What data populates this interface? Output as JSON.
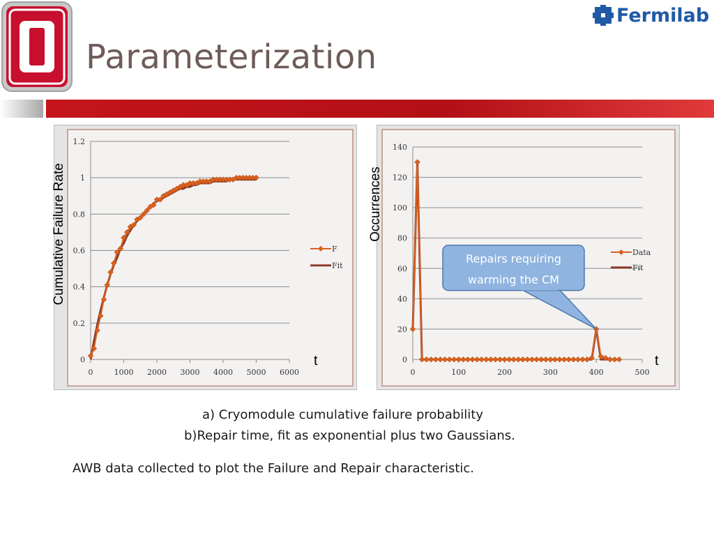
{
  "header": {
    "title": "Parameterization",
    "brand": "Fermilab",
    "logo_color": "#c8102e",
    "accent_red": "#c4141a"
  },
  "chart_data": [
    {
      "type": "line",
      "ylabel": "Cumulative Failure Rate",
      "xlabel": "t",
      "xlim": [
        0,
        6000
      ],
      "ylim": [
        0,
        1.2
      ],
      "xticks": [
        "0",
        "1000",
        "2000",
        "3000",
        "4000",
        "5000",
        "6000"
      ],
      "yticks": [
        "0",
        "0.2",
        "0.4",
        "0.6",
        "0.8",
        "1",
        "1.2"
      ],
      "grid": true,
      "legend_position": "right",
      "series": [
        {
          "name": "F",
          "color": "#d9611e",
          "marker": "diamond",
          "x": [
            0,
            100,
            200,
            300,
            400,
            500,
            600,
            700,
            800,
            900,
            1000,
            1100,
            1200,
            1300,
            1400,
            1500,
            1600,
            1700,
            1800,
            1900,
            2000,
            2100,
            2200,
            2300,
            2400,
            2500,
            2600,
            2700,
            2800,
            2900,
            3000,
            3100,
            3200,
            3300,
            3400,
            3500,
            3600,
            3700,
            3800,
            3900,
            4000,
            4100,
            4200,
            4300,
            4400,
            4500,
            4600,
            4700,
            4800,
            4900,
            5000
          ],
          "y": [
            0.02,
            0.06,
            0.16,
            0.24,
            0.33,
            0.41,
            0.48,
            0.53,
            0.59,
            0.61,
            0.67,
            0.7,
            0.73,
            0.74,
            0.77,
            0.78,
            0.8,
            0.82,
            0.84,
            0.85,
            0.88,
            0.88,
            0.9,
            0.91,
            0.92,
            0.93,
            0.94,
            0.95,
            0.96,
            0.96,
            0.97,
            0.97,
            0.97,
            0.98,
            0.98,
            0.98,
            0.98,
            0.99,
            0.99,
            0.99,
            0.99,
            0.99,
            0.99,
            0.99,
            1.0,
            1.0,
            1.0,
            1.0,
            1.0,
            1.0,
            1.0
          ]
        },
        {
          "name": "Fit",
          "color": "#8a3a2a",
          "marker": "none",
          "x": [
            0,
            100,
            200,
            300,
            400,
            500,
            600,
            700,
            800,
            900,
            1000,
            1100,
            1200,
            1300,
            1400,
            1500,
            1600,
            1700,
            1800,
            1900,
            2000,
            2100,
            2200,
            2300,
            2400,
            2500,
            2600,
            2700,
            2800,
            2900,
            3000,
            3100,
            3200,
            3300,
            3400,
            3500,
            3600,
            3700,
            3800,
            3900,
            4000,
            4100,
            4200,
            4300,
            4400,
            4500,
            4600,
            4700,
            4800,
            4900,
            5000
          ],
          "y": [
            0.0,
            0.1,
            0.19,
            0.27,
            0.34,
            0.41,
            0.47,
            0.52,
            0.56,
            0.61,
            0.64,
            0.68,
            0.71,
            0.74,
            0.76,
            0.78,
            0.8,
            0.82,
            0.84,
            0.86,
            0.87,
            0.88,
            0.89,
            0.9,
            0.91,
            0.92,
            0.93,
            0.94,
            0.94,
            0.95,
            0.95,
            0.96,
            0.96,
            0.97,
            0.97,
            0.97,
            0.97,
            0.98,
            0.98,
            0.98,
            0.98,
            0.98,
            0.99,
            0.99,
            0.99,
            0.99,
            0.99,
            0.99,
            0.99,
            0.99,
            0.99
          ]
        }
      ]
    },
    {
      "type": "line",
      "ylabel": "Occurrences",
      "xlabel": "t",
      "xlim": [
        0,
        500
      ],
      "ylim": [
        0,
        140
      ],
      "xticks": [
        "0",
        "100",
        "200",
        "300",
        "400",
        "500"
      ],
      "yticks": [
        "0",
        "20",
        "40",
        "60",
        "80",
        "100",
        "120",
        "140"
      ],
      "grid": true,
      "legend_position": "right",
      "series": [
        {
          "name": "Data",
          "color": "#d9611e",
          "marker": "diamond",
          "x": [
            0,
            10,
            20,
            30,
            40,
            50,
            60,
            70,
            80,
            90,
            100,
            110,
            120,
            130,
            140,
            150,
            160,
            170,
            180,
            190,
            200,
            210,
            220,
            230,
            240,
            250,
            260,
            270,
            280,
            290,
            300,
            310,
            320,
            330,
            340,
            350,
            360,
            370,
            380,
            390,
            400,
            410,
            420,
            430,
            440,
            450
          ],
          "y": [
            20,
            130,
            0,
            0,
            0,
            0,
            0,
            0,
            0,
            0,
            0,
            0,
            0,
            0,
            0,
            0,
            0,
            0,
            0,
            0,
            0,
            0,
            0,
            0,
            0,
            0,
            0,
            0,
            0,
            0,
            0,
            0,
            0,
            0,
            0,
            0,
            0,
            0,
            0,
            1,
            20,
            2,
            1,
            0,
            0,
            0
          ]
        },
        {
          "name": "Fit",
          "color": "#8a3a2a",
          "marker": "none",
          "x": [
            0,
            10,
            20,
            30,
            40,
            50,
            60,
            70,
            80,
            90,
            100,
            110,
            120,
            130,
            140,
            150,
            160,
            170,
            180,
            190,
            200,
            210,
            220,
            230,
            240,
            250,
            260,
            270,
            280,
            290,
            300,
            310,
            320,
            330,
            340,
            350,
            360,
            370,
            380,
            390,
            400,
            410,
            420,
            430,
            440,
            450
          ],
          "y": [
            20,
            130,
            0,
            0,
            0,
            0,
            0,
            0,
            0,
            0,
            0,
            0,
            0,
            0,
            0,
            0,
            0,
            0,
            0,
            0,
            0,
            0,
            0,
            0,
            0,
            0,
            0,
            0,
            0,
            0,
            0,
            0,
            0,
            0,
            0,
            0,
            0,
            0,
            0,
            0,
            20,
            0,
            0,
            0,
            0,
            0
          ]
        }
      ],
      "annotation": {
        "text_line1": "Repairs requiring",
        "text_line2": "warming the CM",
        "fill": "#8fb4df",
        "stroke": "#4e78ac",
        "target_x": 400,
        "target_y": 20
      }
    }
  ],
  "captions": {
    "a": "a) Cryomodule cumulative failure probability",
    "b": "b)Repair time, fit as exponential plus two Gaussians.",
    "note": "AWB data collected to plot the Failure and Repair characteristic."
  }
}
